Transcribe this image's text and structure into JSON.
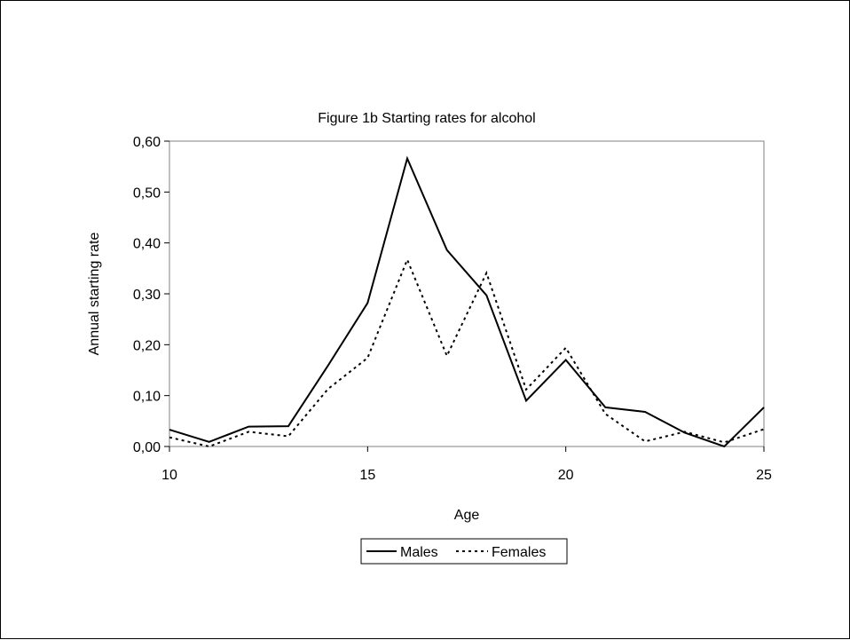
{
  "chart_data": {
    "type": "line",
    "title": "Figure 1b Starting rates for alcohol",
    "xlabel": "Age",
    "ylabel": "Annual starting rate",
    "xlim": [
      10,
      25
    ],
    "ylim": [
      0,
      0.6
    ],
    "xticks": [
      10,
      15,
      20,
      25
    ],
    "yticks": [
      0,
      0.1,
      0.2,
      0.3,
      0.4,
      0.5,
      0.6
    ],
    "ytick_labels": [
      "0,00",
      "0,10",
      "0,20",
      "0,30",
      "0,40",
      "0,50",
      "0,60"
    ],
    "grid": false,
    "legend_position": "bottom",
    "x": [
      10,
      11,
      12,
      13,
      14,
      15,
      16,
      17,
      18,
      19,
      20,
      21,
      22,
      23,
      24,
      25
    ],
    "series": [
      {
        "name": "Males",
        "style": "solid",
        "color": "#000000",
        "values": [
          0.033,
          0.009,
          0.039,
          0.04,
          0.159,
          0.282,
          0.566,
          0.386,
          0.297,
          0.09,
          0.17,
          0.077,
          0.068,
          0.027,
          0.0,
          0.077
        ]
      },
      {
        "name": "Females",
        "style": "dotted",
        "color": "#000000",
        "values": [
          0.018,
          0.0,
          0.029,
          0.02,
          0.113,
          0.174,
          0.367,
          0.178,
          0.341,
          0.112,
          0.194,
          0.064,
          0.01,
          0.029,
          0.008,
          0.034
        ]
      }
    ]
  }
}
